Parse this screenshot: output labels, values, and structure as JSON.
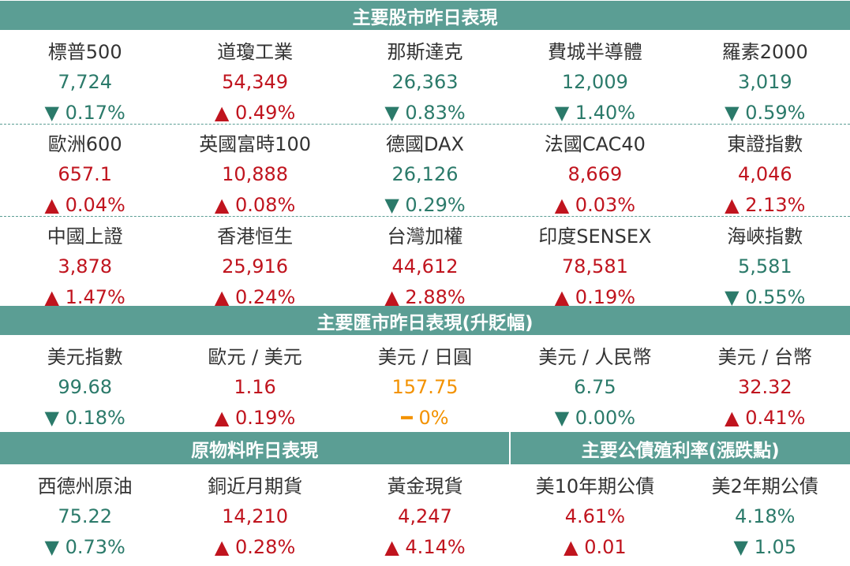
{
  "sections": [
    {
      "title": "主要股市昨日表現",
      "rows": [
        [
          {
            "name": "標普500",
            "value": "7,724",
            "change": "▼ 0.17%",
            "color": "#2b7a6a"
          },
          {
            "name": "道瓊工業",
            "value": "54,349",
            "change": "▲ 0.49%",
            "color": "#c0141e"
          },
          {
            "name": "那斯達克",
            "value": "26,363",
            "change": "▼ 0.83%",
            "color": "#2b7a6a"
          },
          {
            "name": "費城半導體",
            "value": "12,009",
            "change": "▼ 1.40%",
            "color": "#2b7a6a"
          },
          {
            "name": "羅素2000",
            "value": "3,019",
            "change": "▼ 0.59%",
            "color": "#2b7a6a"
          }
        ],
        [
          {
            "name": "歐洲600",
            "value": "657.1",
            "change": "▲ 0.04%",
            "color": "#c0141e"
          },
          {
            "name": "英國富時100",
            "value": "10,888",
            "change": "▲ 0.08%",
            "color": "#c0141e"
          },
          {
            "name": "德國DAX",
            "value": "26,126",
            "change": "▼ 0.29%",
            "color": "#2b7a6a"
          },
          {
            "name": "法國CAC40",
            "value": "8,669",
            "change": "▲ 0.03%",
            "color": "#c0141e"
          },
          {
            "name": "東證指數",
            "value": "4,046",
            "change": "▲ 2.13%",
            "color": "#c0141e"
          }
        ],
        [
          {
            "name": "中國上證",
            "value": "3,878",
            "change": "▲ 1.47%",
            "color": "#c0141e"
          },
          {
            "name": "香港恒生",
            "value": "25,916",
            "change": "▲ 0.24%",
            "color": "#c0141e"
          },
          {
            "name": "台灣加權",
            "value": "44,612",
            "change": "▲ 2.88%",
            "color": "#c0141e"
          },
          {
            "name": "印度SENSEX",
            "value": "78,581",
            "change": "▲ 0.19%",
            "color": "#c0141e"
          },
          {
            "name": "海峽指數",
            "value": "5,581",
            "change": "▼ 0.55%",
            "color": "#2b7a6a"
          }
        ]
      ]
    },
    {
      "title": "主要匯市昨日表現(升貶幅)",
      "rows": [
        [
          {
            "name": "美元指數",
            "value": "99.68",
            "change": "▼ 0.18%",
            "color": "#2b7a6a"
          },
          {
            "name": "歐元 / 美元",
            "value": "1.16",
            "change": "▲ 0.19%",
            "color": "#c0141e"
          },
          {
            "name": "美元 / 日圓",
            "value": "157.75",
            "change": "━ 0%",
            "color": "#f39200"
          },
          {
            "name": "美元 / 人民幣",
            "value": "6.75",
            "change": "▼ 0.00%",
            "color": "#2b7a6a"
          },
          {
            "name": "美元 / 台幣",
            "value": "32.32",
            "change": "▲ 0.41%",
            "color": "#c0141e"
          }
        ]
      ]
    }
  ],
  "bottom": {
    "titles": [
      "原物料昨日表現",
      "主要公債殖利率(漲跌點)"
    ],
    "cells": [
      {
        "name": "西德州原油",
        "value": "75.22",
        "change": "▼ 0.73%",
        "color": "#2b7a6a"
      },
      {
        "name": "銅近月期貨",
        "value": "14,210",
        "change": "▲ 0.28%",
        "color": "#c0141e"
      },
      {
        "name": "黃金現貨",
        "value": "4,247",
        "change": "▲ 4.14%",
        "color": "#c0141e"
      },
      {
        "name": "美10年期公債",
        "value": "4.61%",
        "change": "▲ 0.01",
        "color": "#c0141e"
      },
      {
        "name": "美2年期公債",
        "value": "4.18%",
        "change": "▼ 1.05",
        "color": "#2b7a6a"
      }
    ]
  }
}
